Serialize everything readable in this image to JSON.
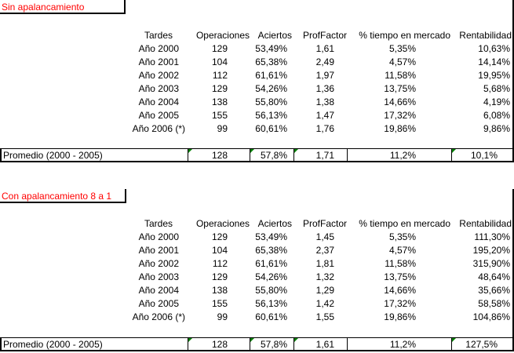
{
  "sheet": {
    "sections": [
      {
        "title": "Sin apalancamiento",
        "headers": [
          "Tardes",
          "Operaciones",
          "Aciertos",
          "ProfFactor",
          "% tiempo en mercado",
          "Rentabilidad"
        ],
        "rows": [
          [
            "Año 2000",
            "129",
            "53,49%",
            "1,61",
            "5,35%",
            "10,63%"
          ],
          [
            "Año 2001",
            "104",
            "65,38%",
            "2,49",
            "4,57%",
            "14,14%"
          ],
          [
            "Año 2002",
            "112",
            "61,61%",
            "1,97",
            "11,58%",
            "19,95%"
          ],
          [
            "Año 2003",
            "129",
            "54,26%",
            "1,36",
            "13,75%",
            "5,68%"
          ],
          [
            "Año 2004",
            "138",
            "55,80%",
            "1,38",
            "14,66%",
            "4,19%"
          ],
          [
            "Año 2005",
            "155",
            "56,13%",
            "1,47",
            "17,32%",
            "6,08%"
          ],
          [
            "Año 2006 (*)",
            "99",
            "60,61%",
            "1,76",
            "19,86%",
            "9,86%"
          ]
        ],
        "average": {
          "label": "Promedio (2000 - 2005)",
          "values": [
            "128",
            "57,8%",
            "1,71",
            "11,2%",
            "10,1%"
          ]
        }
      },
      {
        "title": "Con apalancamiento 8 a 1",
        "headers": [
          "Tardes",
          "Operaciones",
          "Aciertos",
          "ProfFactor",
          "% tiempo en mercado",
          "Rentabilidad"
        ],
        "rows": [
          [
            "Año 2000",
            "129",
            "53,49%",
            "1,45",
            "5,35%",
            "111,30%"
          ],
          [
            "Año 2001",
            "104",
            "65,38%",
            "2,37",
            "4,57%",
            "195,20%"
          ],
          [
            "Año 2002",
            "112",
            "61,61%",
            "1,81",
            "11,58%",
            "315,90%"
          ],
          [
            "Año 2003",
            "129",
            "54,26%",
            "1,32",
            "13,75%",
            "48,64%"
          ],
          [
            "Año 2004",
            "138",
            "55,80%",
            "1,29",
            "14,66%",
            "35,66%"
          ],
          [
            "Año 2005",
            "155",
            "56,13%",
            "1,42",
            "17,32%",
            "58,58%"
          ],
          [
            "Año 2006 (*)",
            "99",
            "60,61%",
            "1,55",
            "19,86%",
            "104,86%"
          ]
        ],
        "average": {
          "label": "Promedio (2000 - 2005)",
          "values": [
            "128",
            "57,8%",
            "1,61",
            "11,2%",
            "127,5%"
          ]
        }
      }
    ],
    "colors": {
      "title_text": "#ff0000",
      "comment_marker": "#008000",
      "grid_line": "#000000"
    }
  }
}
